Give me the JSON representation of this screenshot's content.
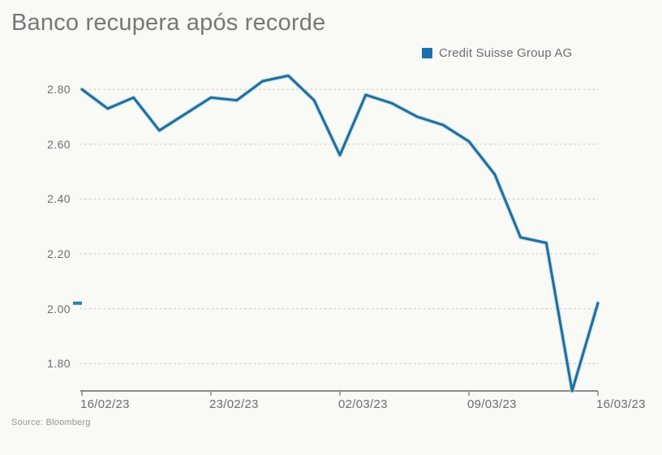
{
  "page": {
    "background": "#f9f9f6"
  },
  "header": {
    "title": "Banco recupera após recorde"
  },
  "legend": {
    "label": "Credit Suisse Group AG",
    "swatch_color": "#1c6fad"
  },
  "footer": {
    "source": "Source: Bloomberg"
  },
  "chart_data": {
    "type": "line",
    "title": "Banco recupera após recorde",
    "x": [
      "16/02/23",
      "17/02/23",
      "20/02/23",
      "21/02/23",
      "22/02/23",
      "23/02/23",
      "24/02/23",
      "27/02/23",
      "28/02/23",
      "01/03/23",
      "02/03/23",
      "03/03/23",
      "06/03/23",
      "07/03/23",
      "08/03/23",
      "09/03/23",
      "10/03/23",
      "13/03/23",
      "14/03/23",
      "15/03/23",
      "16/03/23"
    ],
    "series": [
      {
        "name": "Credit Suisse Group AG",
        "values": [
          2.8,
          2.73,
          2.77,
          2.65,
          2.71,
          2.77,
          2.76,
          2.83,
          2.85,
          2.76,
          2.56,
          2.78,
          2.75,
          2.7,
          2.67,
          2.61,
          2.49,
          2.26,
          2.24,
          1.7,
          2.02
        ],
        "color": "#226f9d",
        "halo_color": "#bfe2f2"
      }
    ],
    "xlabel": "",
    "ylabel": "",
    "x_tick_labels": [
      "16/02/23",
      "23/02/23",
      "02/03/23",
      "09/03/23",
      "16/03/23"
    ],
    "x_tick_indices": [
      0,
      5,
      10,
      15,
      20
    ],
    "y_ticks": [
      1.8,
      2.0,
      2.2,
      2.4,
      2.6,
      2.8
    ],
    "ylim": [
      1.7,
      2.9
    ],
    "grid": "horizontal-dotted",
    "legend_position": "top-right",
    "last_price_marker": {
      "value": 2.02,
      "color": "#2383ab"
    },
    "axis_color": "#8b8b8b",
    "grid_color": "#d4d4d1",
    "label_color": "#6c6d70"
  }
}
